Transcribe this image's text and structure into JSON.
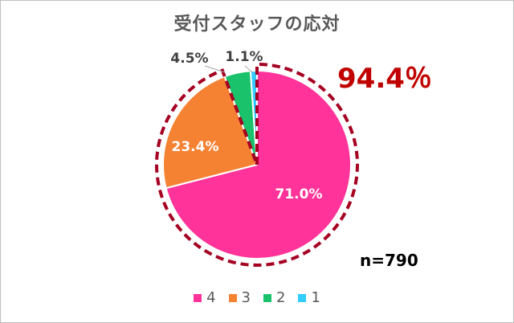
{
  "chart_data": {
    "type": "pie",
    "title": "受付スタッフの応対",
    "categories": [
      "4",
      "3",
      "2",
      "1"
    ],
    "values": [
      71.0,
      23.4,
      4.5,
      1.1
    ],
    "labels": [
      "71.0%",
      "23.4%",
      "4.5%",
      "1.1%"
    ],
    "colors": [
      "#ff3399",
      "#f58233",
      "#19c26b",
      "#33ccff"
    ],
    "legend": "bottom",
    "annotations": {
      "highlight_total": "94.4％",
      "sample_size": "n=790"
    }
  }
}
